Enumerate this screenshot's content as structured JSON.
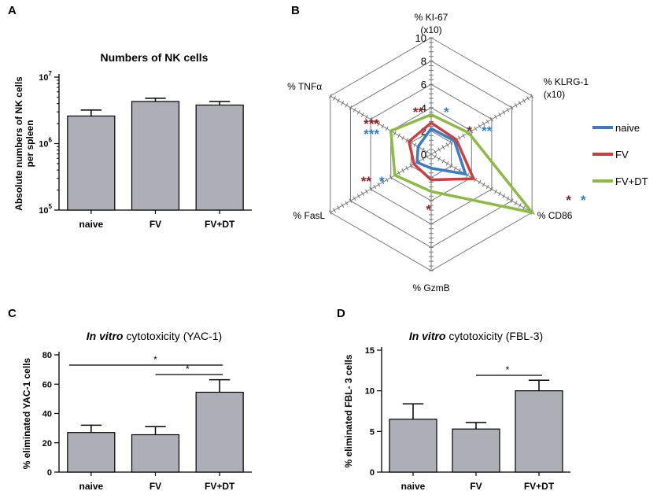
{
  "panels": {
    "A": "A",
    "B": "B",
    "C": "C",
    "D": "D"
  },
  "chart_data": [
    {
      "panel": "A",
      "type": "bar",
      "title": "Numbers of NK cells",
      "ylabel": "Absolute numbers of NK cells\nper spleen",
      "yscale": "log",
      "ylim": [
        100000,
        10000000
      ],
      "yticks": [
        {
          "base": "10",
          "exp": "5"
        },
        {
          "base": "10",
          "exp": "6"
        },
        {
          "base": "10",
          "exp": "7"
        }
      ],
      "categories": [
        "naive",
        "FV",
        "FV+DT"
      ],
      "values": [
        2600000,
        4300000,
        3800000
      ],
      "errors": [
        600000,
        500000,
        500000
      ],
      "bar_color": "#aeaeb6"
    },
    {
      "panel": "B",
      "type": "radar",
      "axes": [
        "% KI-67\n(x10)",
        "% KLRG-1\n(x10)",
        "% CD86",
        "% GzmB",
        "% FasL",
        "% TNFα"
      ],
      "rlim": [
        0,
        10
      ],
      "ring_labels": [
        "0",
        "2",
        "4",
        "6",
        "8",
        "10"
      ],
      "series": [
        {
          "name": "naive",
          "color": "#3b7dc4",
          "values": [
            2.2,
            2.3,
            3.4,
            1.2,
            1.4,
            1.3
          ]
        },
        {
          "name": "FV",
          "color": "#c8403f",
          "values": [
            2.7,
            2.5,
            4.2,
            2.2,
            1.7,
            2.2
          ]
        },
        {
          "name": "FV+DT",
          "color": "#8bbb44",
          "values": [
            3.4,
            3.7,
            10.0,
            3.2,
            3.6,
            4.0
          ]
        }
      ],
      "significance": [
        {
          "axis": "% KI-67\n(x10)",
          "red": "**",
          "blue": "*"
        },
        {
          "axis": "% KLRG-1\n(x10)",
          "red": "*",
          "blue": "**"
        },
        {
          "axis": "% CD86",
          "red": "*",
          "blue": "*"
        },
        {
          "axis": "% GzmB",
          "red": "*",
          "blue": ""
        },
        {
          "axis": "% FasL",
          "red": "**",
          "blue": "*"
        },
        {
          "axis": "% TNFα",
          "red": "***",
          "blue": "***"
        }
      ]
    },
    {
      "panel": "C",
      "type": "bar",
      "title_italic": "In vitro",
      "title_rest": " cytotoxicity (YAC-1)",
      "ylabel": "% eliminated YAC-1 cells",
      "ylim": [
        0,
        80
      ],
      "yticks": [
        "0",
        "20",
        "40",
        "60",
        "80"
      ],
      "categories": [
        "naive",
        "FV",
        "FV+DT"
      ],
      "values": [
        27,
        25.5,
        54.5
      ],
      "errors": [
        5,
        5.5,
        8.5
      ],
      "bar_color": "#aeaeb6",
      "sig_bars": [
        {
          "from": "naive",
          "to": "FV+DT",
          "label": "*"
        },
        {
          "from": "FV",
          "to": "FV+DT",
          "label": "*"
        }
      ]
    },
    {
      "panel": "D",
      "type": "bar",
      "title_italic": "In vitro",
      "title_rest": " cytotoxicity (FBL-3)",
      "ylabel": "% eliminated FBL- 3 cells",
      "ylim": [
        0,
        15
      ],
      "yticks": [
        "0",
        "5",
        "10",
        "15"
      ],
      "categories": [
        "naive",
        "FV",
        "FV+DT"
      ],
      "values": [
        6.5,
        5.3,
        10.0
      ],
      "errors": [
        1.9,
        0.8,
        1.3
      ],
      "bar_color": "#aeaeb6",
      "sig_bars": [
        {
          "from": "FV",
          "to": "FV+DT",
          "label": "*"
        }
      ]
    }
  ]
}
